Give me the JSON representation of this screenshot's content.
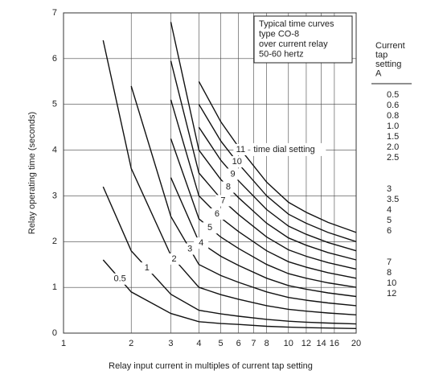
{
  "chart_data": {
    "type": "line",
    "x_label": "Relay input current in multiples of current tap setting",
    "y_label": "Relay operating time (seconds)",
    "annotation": [
      "Typical time curves",
      "type CO-8",
      "over current relay",
      "50-60 hertz"
    ],
    "curve_label_note": "time dial setting",
    "x": [
      1.5,
      2,
      3,
      4,
      5,
      6,
      8,
      10,
      12,
      15,
      20
    ],
    "series": [
      {
        "name": "0.5",
        "color": "#111111",
        "values": [
          1.6,
          0.9,
          0.43,
          0.25,
          0.21,
          0.19,
          0.15,
          0.13,
          0.12,
          0.11,
          0.1
        ]
      },
      {
        "name": "1",
        "color": "#111111",
        "values": [
          3.2,
          1.8,
          0.85,
          0.5,
          0.42,
          0.37,
          0.3,
          0.26,
          0.24,
          0.22,
          0.2
        ]
      },
      {
        "name": "2",
        "color": "#111111",
        "values": [
          6.4,
          3.6,
          1.7,
          1.0,
          0.84,
          0.74,
          0.6,
          0.52,
          0.48,
          0.44,
          0.4
        ]
      },
      {
        "name": "3",
        "color": "#111111",
        "values": [
          null,
          5.4,
          2.55,
          1.5,
          1.26,
          1.11,
          0.9,
          0.78,
          0.72,
          0.66,
          0.6
        ]
      },
      {
        "name": "4",
        "color": "#111111",
        "values": [
          null,
          null,
          3.4,
          2.0,
          1.68,
          1.48,
          1.2,
          1.04,
          0.96,
          0.88,
          0.8
        ]
      },
      {
        "name": "5",
        "color": "#111111",
        "values": [
          null,
          null,
          4.25,
          2.5,
          2.1,
          1.85,
          1.5,
          1.3,
          1.2,
          1.1,
          1.0
        ]
      },
      {
        "name": "6",
        "color": "#111111",
        "values": [
          null,
          null,
          5.1,
          3.0,
          2.52,
          2.22,
          1.8,
          1.56,
          1.44,
          1.32,
          1.2
        ]
      },
      {
        "name": "7",
        "color": "#111111",
        "values": [
          null,
          null,
          5.95,
          3.5,
          2.94,
          2.59,
          2.1,
          1.82,
          1.68,
          1.54,
          1.4
        ]
      },
      {
        "name": "8",
        "color": "#111111",
        "values": [
          null,
          null,
          6.8,
          4.0,
          3.36,
          2.96,
          2.4,
          2.08,
          1.92,
          1.76,
          1.6
        ]
      },
      {
        "name": "9",
        "color": "#111111",
        "values": [
          null,
          null,
          null,
          4.5,
          3.78,
          3.33,
          2.7,
          2.34,
          2.16,
          1.98,
          1.8
        ]
      },
      {
        "name": "10",
        "color": "#111111",
        "values": [
          null,
          null,
          null,
          5.0,
          4.2,
          3.7,
          3.0,
          2.6,
          2.4,
          2.2,
          2.0
        ]
      },
      {
        "name": "11",
        "color": "#111111",
        "values": [
          null,
          null,
          null,
          5.5,
          4.62,
          4.07,
          3.3,
          2.86,
          2.64,
          2.42,
          2.2
        ]
      }
    ],
    "xlog": true,
    "xlim": [
      1,
      20
    ],
    "ylim": [
      0,
      7
    ],
    "xticks": [
      1,
      2,
      3,
      4,
      5,
      6,
      7,
      8,
      10,
      12,
      14,
      16,
      20
    ],
    "yticks": [
      0,
      1,
      2,
      3,
      4,
      5,
      6,
      7
    ],
    "grid": true
  },
  "tap_table": {
    "header": [
      "Current",
      "tap",
      "setting",
      "A"
    ],
    "groups": [
      [
        "0.5",
        "0.6",
        "0.8",
        "1.0",
        "1.5",
        "2.0",
        "2.5"
      ],
      [
        "3",
        "3.5",
        "4",
        "5",
        "6"
      ],
      [
        "7",
        "8",
        "10",
        "12"
      ]
    ]
  }
}
